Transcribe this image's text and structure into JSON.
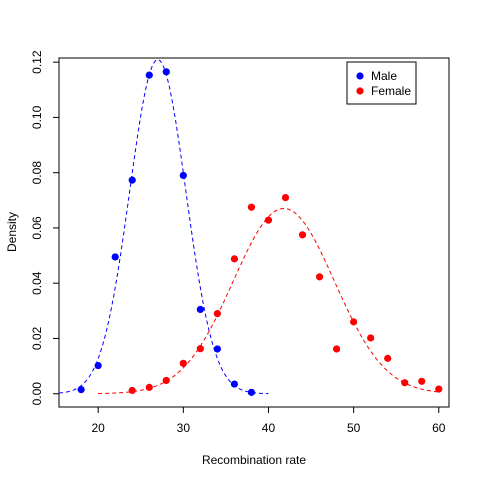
{
  "chart_data": {
    "type": "scatter",
    "title": "",
    "xlabel": "Recombination rate",
    "ylabel": "Density",
    "xlim": [
      15.4,
      61.2
    ],
    "ylim": [
      -0.0048,
      0.1215
    ],
    "x_ticks": [
      20,
      30,
      40,
      50,
      60
    ],
    "y_ticks": [
      0.0,
      0.02,
      0.04,
      0.06,
      0.08,
      0.1,
      0.12
    ],
    "y_tick_labels": [
      "0.00",
      "0.02",
      "0.04",
      "0.06",
      "0.08",
      "0.10",
      "0.12"
    ],
    "grid": false,
    "legend_position": "top-right",
    "series": [
      {
        "name": "Male",
        "color": "#0000ff",
        "points": [
          {
            "x": 18,
            "y": 0.0015
          },
          {
            "x": 20,
            "y": 0.0102
          },
          {
            "x": 22,
            "y": 0.0495
          },
          {
            "x": 24,
            "y": 0.0773
          },
          {
            "x": 26,
            "y": 0.1153
          },
          {
            "x": 28,
            "y": 0.1165
          },
          {
            "x": 30,
            "y": 0.079
          },
          {
            "x": 32,
            "y": 0.0305
          },
          {
            "x": 34,
            "y": 0.0162
          },
          {
            "x": 36,
            "y": 0.0035
          },
          {
            "x": 38,
            "y": 0.0005
          }
        ],
        "fit": {
          "style": "dashed",
          "mean": 27.0,
          "sd": 3.3,
          "x_range": [
            15.4,
            40
          ]
        }
      },
      {
        "name": "Female",
        "color": "#ff0000",
        "points": [
          {
            "x": 24,
            "y": 0.0012
          },
          {
            "x": 26,
            "y": 0.0023
          },
          {
            "x": 28,
            "y": 0.0048
          },
          {
            "x": 30,
            "y": 0.011
          },
          {
            "x": 32,
            "y": 0.0163
          },
          {
            "x": 34,
            "y": 0.029
          },
          {
            "x": 36,
            "y": 0.0488
          },
          {
            "x": 38,
            "y": 0.0675
          },
          {
            "x": 40,
            "y": 0.0628
          },
          {
            "x": 42,
            "y": 0.071
          },
          {
            "x": 44,
            "y": 0.0575
          },
          {
            "x": 46,
            "y": 0.0423
          },
          {
            "x": 48,
            "y": 0.0162
          },
          {
            "x": 50,
            "y": 0.026
          },
          {
            "x": 52,
            "y": 0.0202
          },
          {
            "x": 54,
            "y": 0.0128
          },
          {
            "x": 56,
            "y": 0.004
          },
          {
            "x": 58,
            "y": 0.0045
          },
          {
            "x": 60,
            "y": 0.0017
          }
        ],
        "fit": {
          "style": "dashed",
          "mean": 41.8,
          "sd": 5.95,
          "x_range": [
            20,
            60
          ]
        }
      }
    ]
  }
}
